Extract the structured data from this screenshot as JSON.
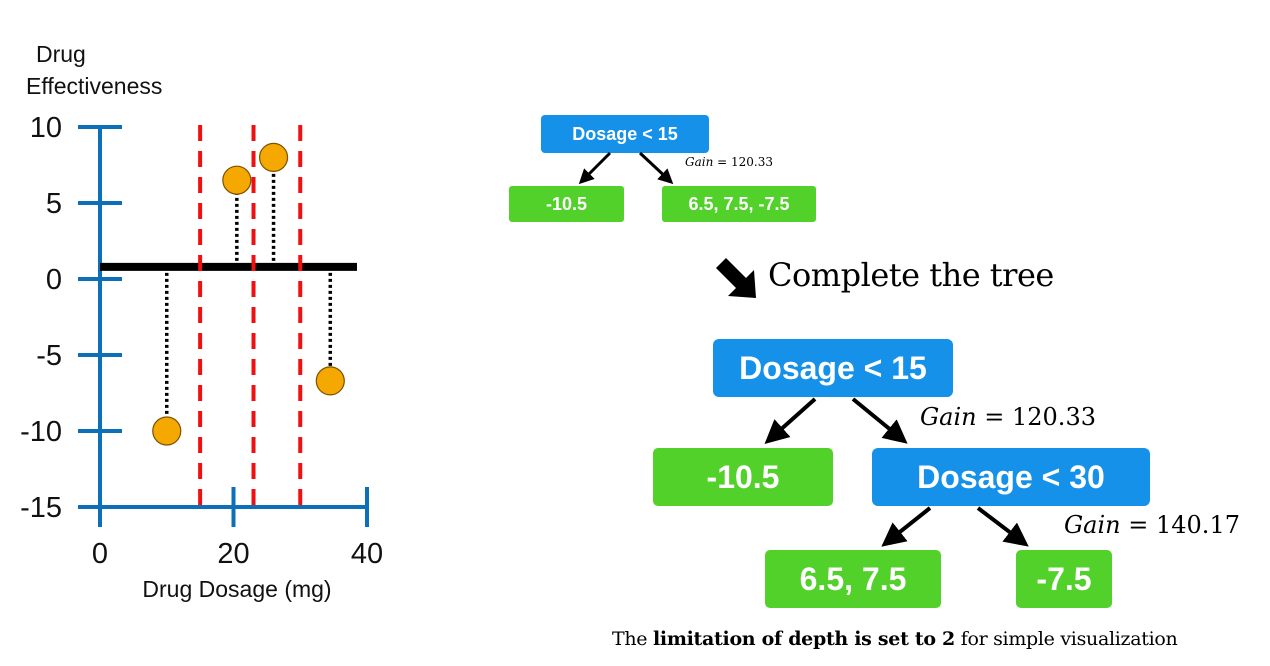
{
  "chart_data": {
    "type": "scatter",
    "ylabel_line1": "Drug",
    "ylabel_line2": "Effectiveness",
    "xlabel": "Drug Dosage (mg)",
    "xlim": [
      0,
      40
    ],
    "ylim": [
      -15,
      10
    ],
    "x_ticks": [
      "0",
      "20",
      "40"
    ],
    "y_ticks": [
      "10",
      "5",
      "0",
      "-5",
      "-10",
      "-15"
    ],
    "points": [
      {
        "x": 10,
        "y": -10
      },
      {
        "x": 20.5,
        "y": 6.5
      },
      {
        "x": 26,
        "y": 8
      },
      {
        "x": 34.5,
        "y": -6.7
      }
    ],
    "split_lines_x": [
      15,
      23,
      30
    ],
    "mean_line_y": 0.8,
    "colors": {
      "axis": "#0d6fb8",
      "point": "#f5a800",
      "split": "#ee1111",
      "residual": "#000000"
    }
  },
  "small_tree": {
    "root": "Dosage <  15",
    "gain": "120.33",
    "left_leaf": "-10.5",
    "right_leaf": "6.5, 7.5, -7.5"
  },
  "transition": {
    "arrow_icon": "bold-down-right-arrow",
    "label": "Complete the tree"
  },
  "big_tree": {
    "root": "Dosage < 15",
    "root_gain": "120.33",
    "left_leaf": "-10.5",
    "inner_node": "Dosage < 30",
    "inner_gain": "140.17",
    "inner_left_leaf": "6.5, 7.5",
    "inner_right_leaf": "-7.5"
  },
  "caption": {
    "pre": "The ",
    "bold": "limitation of depth is set to 2",
    "post": " for simple visualization"
  },
  "gain_word": "Gain",
  "gain_eq": " = ",
  "colors": {
    "node_blue": "#1591ea",
    "leaf_green": "#52d12b"
  }
}
